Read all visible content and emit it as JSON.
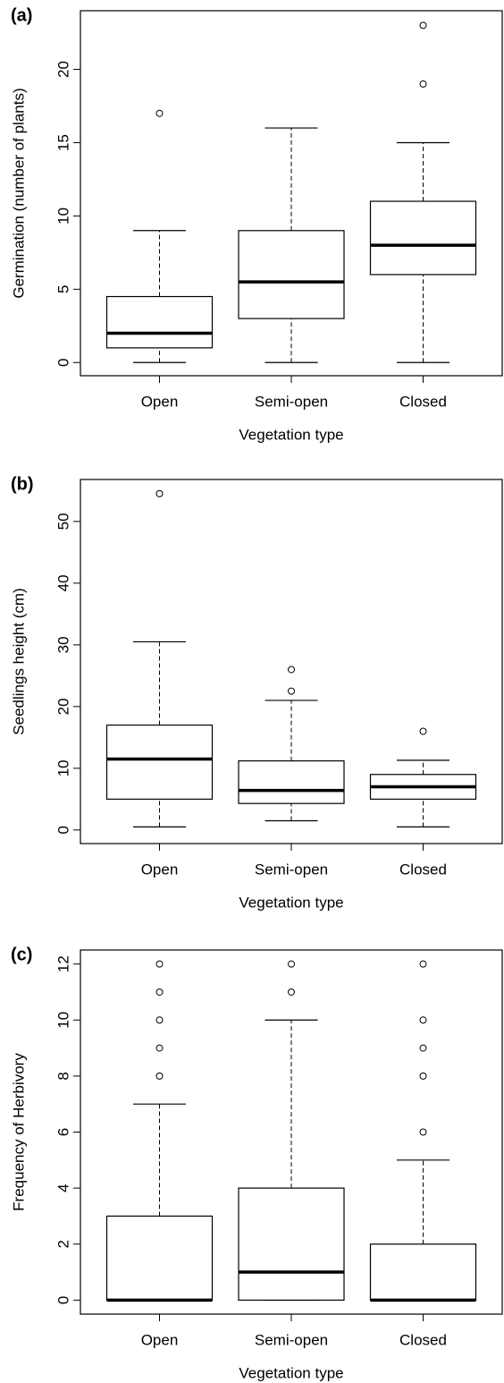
{
  "chart_data": [
    {
      "type": "box",
      "panel_label": "(a)",
      "ylabel": "Germination (number of plants)",
      "xlabel": "Vegetation type",
      "categories": [
        "Open",
        "Semi-open",
        "Closed"
      ],
      "boxes": [
        {
          "whisker_low": 0,
          "q1": 1,
          "median": 2,
          "q3": 4.5,
          "whisker_high": 9,
          "outliers": [
            17
          ]
        },
        {
          "whisker_low": 0,
          "q1": 3,
          "median": 5.5,
          "q3": 9,
          "whisker_high": 16,
          "outliers": []
        },
        {
          "whisker_low": 0,
          "q1": 6,
          "median": 8,
          "q3": 11,
          "whisker_high": 15,
          "outliers": [
            19,
            23
          ]
        }
      ],
      "ylim": [
        -0.9,
        24
      ],
      "yticks": [
        0,
        5,
        10,
        15,
        20
      ]
    },
    {
      "type": "box",
      "panel_label": "(b)",
      "ylabel": "Seedlings height (cm)",
      "xlabel": "Vegetation type",
      "categories": [
        "Open",
        "Semi-open",
        "Closed"
      ],
      "boxes": [
        {
          "whisker_low": 0.5,
          "q1": 5,
          "median": 11.5,
          "q3": 17,
          "whisker_high": 30.5,
          "outliers": [
            54.5
          ]
        },
        {
          "whisker_low": 1.5,
          "q1": 4.3,
          "median": 6.4,
          "q3": 11.2,
          "whisker_high": 21,
          "outliers": [
            22.5,
            26
          ]
        },
        {
          "whisker_low": 0.5,
          "q1": 5,
          "median": 7,
          "q3": 9,
          "whisker_high": 11.3,
          "outliers": [
            16
          ]
        }
      ],
      "ylim": [
        -2.2,
        56.8
      ],
      "yticks": [
        0,
        10,
        20,
        30,
        40,
        50
      ]
    },
    {
      "type": "box",
      "panel_label": "(c)",
      "ylabel": "Frequency of Herbivory",
      "xlabel": "Vegetation type",
      "categories": [
        "Open",
        "Semi-open",
        "Closed"
      ],
      "boxes": [
        {
          "whisker_low": 0,
          "q1": 0,
          "median": 0,
          "q3": 3,
          "whisker_high": 7,
          "outliers": [
            8,
            9,
            10,
            11,
            12
          ]
        },
        {
          "whisker_low": 0,
          "q1": 0,
          "median": 1,
          "q3": 4,
          "whisker_high": 10,
          "outliers": [
            11,
            12
          ]
        },
        {
          "whisker_low": 0,
          "q1": 0,
          "median": 0,
          "q3": 2,
          "whisker_high": 5,
          "outliers": [
            6,
            8,
            9,
            10,
            12
          ]
        }
      ],
      "ylim": [
        -0.5,
        12.5
      ],
      "yticks": [
        0,
        2,
        4,
        6,
        8,
        10,
        12
      ]
    }
  ]
}
